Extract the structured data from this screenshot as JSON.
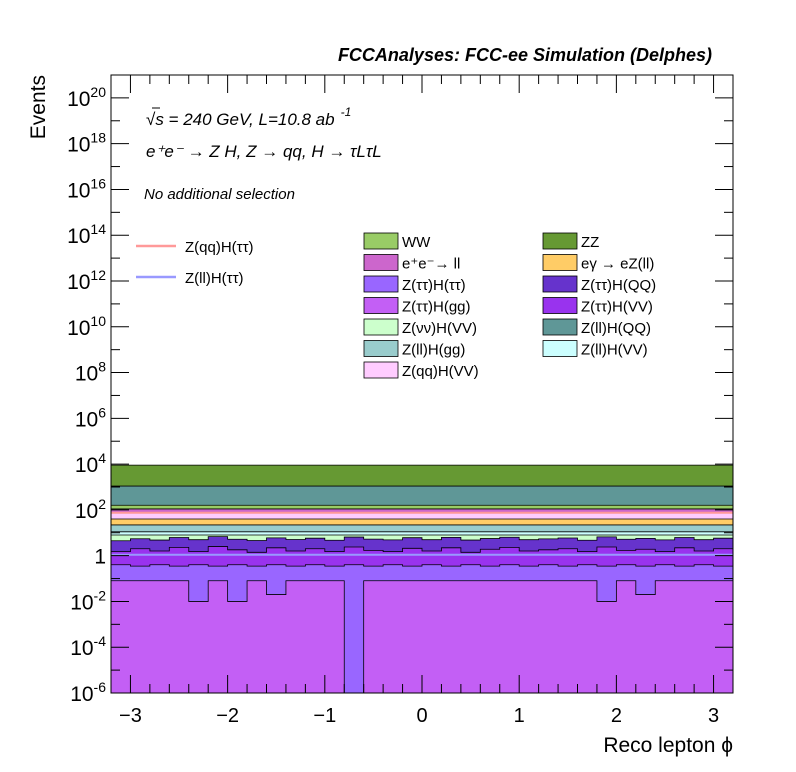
{
  "header": {
    "title": "FCCAnalyses: FCC-ee Simulation (Delphes)",
    "energy_prefix": "√s = 240 GeV, L=10.8 ab",
    "energy_exp": "-1",
    "process": "e⁺e⁻ → Z H, Z → qq, H → τLτL",
    "selection": "No additional selection"
  },
  "chart_data": {
    "type": "area",
    "xlabel": "Reco lepton ϕ",
    "ylabel": "Events",
    "xlim": [
      -3.2,
      3.2
    ],
    "ylim": [
      1e-06,
      1e+21
    ],
    "log_y": true,
    "x_ticks": [
      -3,
      -2,
      -1,
      0,
      1,
      2,
      3
    ],
    "x_tick_labels": [
      "−3",
      "−2",
      "−1",
      "0",
      "1",
      "2",
      "3"
    ],
    "y_ticks": [
      {
        "value": 1e-06,
        "base": "10",
        "exp": "-6"
      },
      {
        "value": 0.0001,
        "base": "10",
        "exp": "-4"
      },
      {
        "value": 0.01,
        "base": "10",
        "exp": "-2"
      },
      {
        "value": 1,
        "base": "1",
        "exp": ""
      },
      {
        "value": 100.0,
        "base": "10",
        "exp": "2"
      },
      {
        "value": 10000.0,
        "base": "10",
        "exp": "4"
      },
      {
        "value": 1000000.0,
        "base": "10",
        "exp": "6"
      },
      {
        "value": 100000000.0,
        "base": "10",
        "exp": "8"
      },
      {
        "value": 10000000000.0,
        "base": "10",
        "exp": "10"
      },
      {
        "value": 1000000000000.0,
        "base": "10",
        "exp": "12"
      },
      {
        "value": 100000000000000.0,
        "base": "10",
        "exp": "14"
      },
      {
        "value": 1e+16,
        "base": "10",
        "exp": "16"
      },
      {
        "value": 1e+18,
        "base": "10",
        "exp": "18"
      },
      {
        "value": 1e+20,
        "base": "10",
        "exp": "20"
      }
    ],
    "bin_edges": [
      -3.2,
      -3.0,
      -2.8,
      -2.6,
      -2.4,
      -2.2,
      -2.0,
      -1.8,
      -1.6,
      -1.4,
      -1.2,
      -1.0,
      -0.8,
      -0.6,
      -0.4,
      -0.2,
      0.0,
      0.2,
      0.4,
      0.6,
      0.8,
      1.0,
      1.2,
      1.4,
      1.6,
      1.8,
      2.0,
      2.2,
      2.4,
      2.6,
      2.8,
      3.0,
      3.2
    ],
    "stack_tops": [
      {
        "name": "Z(ττ)H(gg)",
        "color": "#c35ff5",
        "values": [
          0.08,
          0.08,
          0.08,
          0.08,
          0.01,
          0.08,
          0.01,
          0.08,
          0.02,
          0.08,
          0.08,
          0.08,
          1e-07,
          0.08,
          0.08,
          0.08,
          0.08,
          0.08,
          0.08,
          0.08,
          0.08,
          0.08,
          0.08,
          0.08,
          0.08,
          0.01,
          0.08,
          0.02,
          0.08,
          0.08,
          0.08,
          0.08
        ]
      },
      {
        "name": "Z(ττ)H(ττ)",
        "color": "#9966ff",
        "values": [
          0.4,
          0.35,
          0.4,
          0.35,
          0.4,
          0.35,
          0.4,
          0.35,
          0.4,
          0.35,
          0.4,
          0.35,
          0.4,
          0.35,
          0.4,
          0.35,
          0.4,
          0.35,
          0.4,
          0.35,
          0.4,
          0.35,
          0.4,
          0.35,
          0.4,
          0.35,
          0.4,
          0.35,
          0.4,
          0.35,
          0.4,
          0.35
        ]
      },
      {
        "name": "Z(ττ)H(VV)",
        "color": "#9933ee",
        "values": [
          1.5,
          2.0,
          1.6,
          2.3,
          1.5,
          2.5,
          1.8,
          1.4,
          2.2,
          1.6,
          2.0,
          1.5,
          2.4,
          1.7,
          1.5,
          2.1,
          1.6,
          2.2,
          1.4,
          1.9,
          2.3,
          1.6,
          1.8,
          2.0,
          1.5,
          2.4,
          1.7,
          1.9,
          1.5,
          2.2,
          1.6,
          2.0
        ]
      },
      {
        "name": "Z(ττ)H(QQ)",
        "color": "#6633cc",
        "values": [
          4.5,
          5.5,
          4.8,
          6.2,
          5.0,
          6.8,
          5.2,
          4.6,
          6.0,
          5.1,
          5.8,
          4.7,
          6.5,
          5.3,
          4.9,
          6.1,
          5.0,
          6.3,
          4.8,
          5.6,
          6.4,
          5.0,
          5.4,
          5.9,
          4.7,
          6.6,
          5.2,
          5.7,
          4.9,
          6.2,
          5.0,
          5.8
        ]
      },
      {
        "name": "Z(νν)H(VV)",
        "color": "#ccffcc",
        "values": [
          8,
          8,
          8,
          8,
          8,
          8,
          8,
          8,
          8,
          8,
          8,
          8,
          8,
          8,
          8,
          8,
          8,
          8,
          8,
          8,
          8,
          8,
          8,
          8,
          8,
          8,
          8,
          8,
          8,
          8,
          8,
          8
        ]
      },
      {
        "name": "Z(ll)H(VV)",
        "color": "#ccffff",
        "values": [
          11,
          11,
          11,
          11,
          11,
          11,
          11,
          11,
          11,
          11,
          11,
          11,
          11,
          11,
          11,
          11,
          11,
          11,
          11,
          11,
          11,
          11,
          11,
          11,
          11,
          11,
          11,
          11,
          11,
          11,
          11,
          11
        ]
      },
      {
        "name": "Z(ll)H(gg)",
        "color": "#99cccc",
        "values": [
          22,
          22,
          22,
          22,
          22,
          22,
          22,
          22,
          22,
          22,
          22,
          22,
          22,
          22,
          22,
          22,
          22,
          22,
          22,
          22,
          22,
          22,
          22,
          22,
          22,
          22,
          22,
          22,
          22,
          22,
          22,
          22
        ]
      },
      {
        "name": "eγ → eZ(ll)",
        "color": "#ffcc66",
        "values": [
          40,
          40,
          40,
          40,
          40,
          40,
          40,
          40,
          40,
          40,
          40,
          40,
          40,
          40,
          40,
          40,
          40,
          40,
          40,
          40,
          40,
          40,
          40,
          40,
          40,
          40,
          40,
          40,
          40,
          40,
          40,
          40
        ]
      },
      {
        "name": "Z(qq)H(VV)",
        "color": "#ffccff",
        "values": [
          75,
          75,
          75,
          75,
          75,
          75,
          75,
          75,
          75,
          75,
          75,
          75,
          75,
          75,
          75,
          75,
          75,
          75,
          75,
          75,
          75,
          75,
          75,
          75,
          75,
          75,
          75,
          75,
          75,
          75,
          75,
          75
        ]
      },
      {
        "name": "e⁺e⁻→ ll",
        "color": "#cc66cc",
        "values": [
          110,
          110,
          110,
          110,
          110,
          110,
          110,
          110,
          110,
          110,
          110,
          110,
          110,
          110,
          110,
          110,
          110,
          110,
          110,
          110,
          110,
          110,
          110,
          110,
          110,
          110,
          110,
          110,
          110,
          110,
          110,
          110
        ]
      },
      {
        "name": "WW",
        "color": "#99cc66",
        "values": [
          160,
          160,
          160,
          160,
          160,
          160,
          160,
          160,
          160,
          160,
          160,
          160,
          160,
          160,
          160,
          160,
          160,
          160,
          160,
          160,
          160,
          160,
          160,
          160,
          160,
          160,
          160,
          160,
          160,
          160,
          160,
          160
        ]
      },
      {
        "name": "Z(ll)H(QQ)",
        "color": "#5f9797",
        "values": [
          1100,
          1100,
          1100,
          1100,
          1100,
          1100,
          1100,
          1100,
          1100,
          1100,
          1100,
          1100,
          1100,
          1100,
          1100,
          1100,
          1100,
          1100,
          1100,
          1100,
          1100,
          1100,
          1100,
          1100,
          1100,
          1100,
          1100,
          1100,
          1100,
          1100,
          1100,
          1100
        ]
      },
      {
        "name": "ZZ",
        "color": "#669933",
        "values": [
          9000,
          9000,
          9000,
          9000,
          9000,
          9000,
          9000,
          9000,
          9000,
          9000,
          9000,
          9000,
          9000,
          9000,
          9000,
          9000,
          9000,
          9000,
          9000,
          9000,
          9000,
          9000,
          9000,
          9000,
          9000,
          9000,
          9000,
          9000,
          9000,
          9000,
          9000,
          9000
        ]
      }
    ],
    "signal_lines": [
      {
        "name": "Z(qq)H(ττ)",
        "color": "#ff9999",
        "value": 75
      },
      {
        "name": "Z(ll)H(ττ)",
        "color": "#9999ff",
        "value": 1.1
      }
    ],
    "legend": {
      "lines": [
        {
          "label": "Z(qq)H(ττ)",
          "color": "#ff9999"
        },
        {
          "label": "Z(ll)H(ττ)",
          "color": "#9999ff"
        }
      ],
      "col1": [
        {
          "label": "WW",
          "color": "#99cc66"
        },
        {
          "label": "e⁺e⁻→ ll",
          "color": "#cc66cc"
        },
        {
          "label": "Z(ττ)H(ττ)",
          "color": "#9966ff"
        },
        {
          "label": "Z(ττ)H(gg)",
          "color": "#c35ff5"
        },
        {
          "label": "Z(νν)H(VV)",
          "color": "#ccffcc"
        },
        {
          "label": "Z(ll)H(gg)",
          "color": "#99cccc"
        },
        {
          "label": "Z(qq)H(VV)",
          "color": "#ffccff"
        }
      ],
      "col2": [
        {
          "label": "ZZ",
          "color": "#669933"
        },
        {
          "label": "eγ → eZ(ll)",
          "color": "#ffcc66"
        },
        {
          "label": "Z(ττ)H(QQ)",
          "color": "#6633cc"
        },
        {
          "label": "Z(ττ)H(VV)",
          "color": "#9933ee"
        },
        {
          "label": "Z(ll)H(QQ)",
          "color": "#5f9797"
        },
        {
          "label": "Z(ll)H(VV)",
          "color": "#ccffff"
        }
      ]
    }
  }
}
